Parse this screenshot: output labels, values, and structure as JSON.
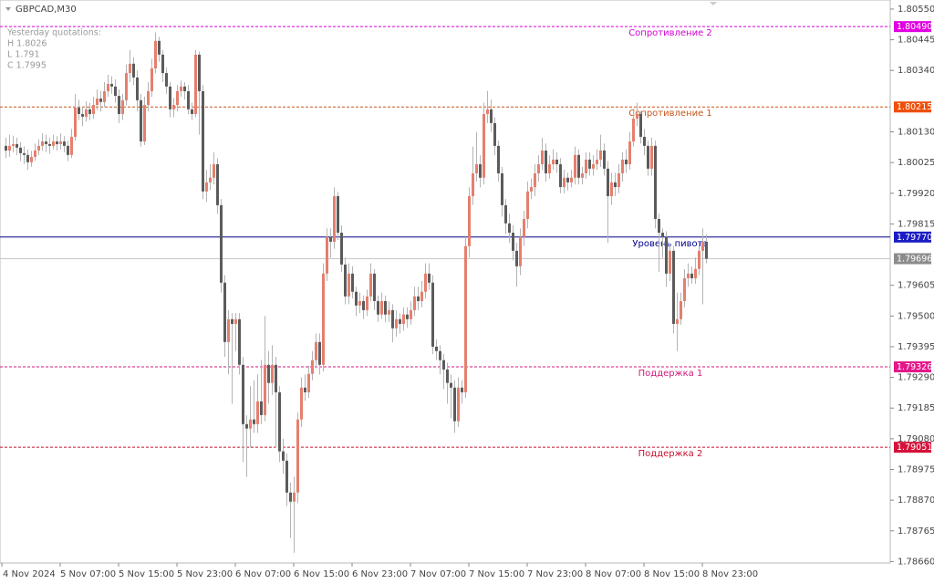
{
  "chart_data": {
    "type": "candlestick",
    "symbol": "GBPCAD,M30",
    "info": [
      "Yesterday quotations:",
      "H 1.8026",
      "L 1.791",
      "C 1.7995"
    ],
    "colors": {
      "up": "#e57f6e",
      "down": "#5b5b5b",
      "wick": "#b4b4b4"
    },
    "xlim": [
      -1.5,
      242.5
    ],
    "xticks": [
      {
        "value": -1,
        "label": "4 Nov 2024"
      },
      {
        "value": 15,
        "label": "5 Nov 07:00"
      },
      {
        "value": 31,
        "label": "5 Nov 15:00"
      },
      {
        "value": 47,
        "label": "5 Nov 23:00"
      },
      {
        "value": 63,
        "label": "6 Nov 07:00"
      },
      {
        "value": 79,
        "label": "6 Nov 15:00"
      },
      {
        "value": 95,
        "label": "6 Nov 23:00"
      },
      {
        "value": 111,
        "label": "7 Nov 07:00"
      },
      {
        "value": 127,
        "label": "7 Nov 15:00"
      },
      {
        "value": 143,
        "label": "7 Nov 23:00"
      },
      {
        "value": 159,
        "label": "8 Nov 07:00"
      },
      {
        "value": 175,
        "label": "8 Nov 15:00"
      },
      {
        "value": 191,
        "label": "8 Nov 23:00"
      }
    ],
    "ylim": [
      1.78655,
      1.80581
    ],
    "yticks": [
      {
        "value": 1.8055,
        "label": "1.80550"
      },
      1.80445,
      {
        "value": 1.8034,
        "label": "1.80340"
      },
      {
        "value": 1.8013,
        "label": "1.80130"
      },
      1.80025,
      {
        "value": 1.7992,
        "label": "1.79920"
      },
      1.79815,
      1.79605,
      {
        "value": 1.795,
        "label": "1.79500"
      },
      1.79395,
      {
        "value": 1.7929,
        "label": "1.79290"
      },
      1.79185,
      {
        "value": 1.7908,
        "label": "1.79080"
      },
      1.78975,
      {
        "value": 1.7887,
        "label": "1.78870"
      },
      1.78765,
      {
        "value": 1.7866,
        "label": "1.78660"
      }
    ],
    "levels": [
      {
        "name": "Сопротивление 2",
        "value": 1.8049,
        "label": "1.80490",
        "color": "#d300d3",
        "tag": "#e100e1",
        "style": "dashed"
      },
      {
        "name": "Сопротивление 1",
        "value": 1.80215,
        "label": "1.80215",
        "color": "#c8561a",
        "tag": "#ef4f0a",
        "style": "dashed"
      },
      {
        "name": "Уровень пивота",
        "value": 1.7977,
        "label": "1.79770",
        "color": "#00008b",
        "tag": "#1c1cc4",
        "style": "solid"
      },
      {
        "name": "Поддержка 1",
        "value": 1.79326,
        "label": "1.79326",
        "color": "#d11a7c",
        "tag": "#e4178a",
        "style": "dashed"
      },
      {
        "name": "Поддержка 2",
        "value": 1.79051,
        "label": "1.79051",
        "color": "#c8102e",
        "tag": "#d4123a",
        "style": "dashed"
      }
    ],
    "current": {
      "value": 1.79696,
      "label": "1.79696",
      "color": "#c8c8c8",
      "tag": "#8c8c8c"
    },
    "candles": [
      [
        1.80082,
        1.8011,
        1.8004,
        1.80066
      ],
      [
        1.80066,
        1.8012,
        1.80045,
        1.80082
      ],
      [
        1.80082,
        1.80115,
        1.8006,
        1.80088
      ],
      [
        1.80088,
        1.8011,
        1.8005,
        1.80076
      ],
      [
        1.80076,
        1.80095,
        1.8003,
        1.80057
      ],
      [
        1.80057,
        1.8008,
        1.8002,
        1.80051
      ],
      [
        1.80051,
        1.8007,
        1.8,
        1.80026
      ],
      [
        1.80026,
        1.80065,
        1.8001,
        1.80044
      ],
      [
        1.80044,
        1.8009,
        1.8003,
        1.80066
      ],
      [
        1.80066,
        1.80105,
        1.8005,
        1.80082
      ],
      [
        1.80082,
        1.80125,
        1.80065,
        1.80097
      ],
      [
        1.80097,
        1.8012,
        1.8006,
        1.80088
      ],
      [
        1.80088,
        1.8011,
        1.80055,
        1.80082
      ],
      [
        1.80082,
        1.8012,
        1.8007,
        1.80097
      ],
      [
        1.80097,
        1.80115,
        1.80065,
        1.80088
      ],
      [
        1.80088,
        1.80125,
        1.8007,
        1.80097
      ],
      [
        1.80097,
        1.80115,
        1.8006,
        1.80082
      ],
      [
        1.80082,
        1.801,
        1.8003,
        1.80051
      ],
      [
        1.80051,
        1.8014,
        1.8004,
        1.80113
      ],
      [
        1.80113,
        1.8026,
        1.801,
        1.80213
      ],
      [
        1.80213,
        1.8024,
        1.8017,
        1.80191
      ],
      [
        1.80191,
        1.80215,
        1.8015,
        1.80182
      ],
      [
        1.80182,
        1.80235,
        1.80165,
        1.80207
      ],
      [
        1.80207,
        1.8023,
        1.8017,
        1.80191
      ],
      [
        1.80191,
        1.8025,
        1.80175,
        1.80222
      ],
      [
        1.80222,
        1.80275,
        1.80205,
        1.80244
      ],
      [
        1.80244,
        1.8027,
        1.802,
        1.80232
      ],
      [
        1.80232,
        1.803,
        1.80215,
        1.80269
      ],
      [
        1.80269,
        1.80325,
        1.8025,
        1.80294
      ],
      [
        1.80294,
        1.8032,
        1.8026,
        1.80285
      ],
      [
        1.80285,
        1.8031,
        1.8023,
        1.80253
      ],
      [
        1.80253,
        1.80275,
        1.8016,
        1.80191
      ],
      [
        1.80191,
        1.8026,
        1.8017,
        1.80238
      ],
      [
        1.80238,
        1.8036,
        1.8022,
        1.80331
      ],
      [
        1.80331,
        1.8041,
        1.803,
        1.80363
      ],
      [
        1.80363,
        1.80385,
        1.8029,
        1.80316
      ],
      [
        1.80316,
        1.8034,
        1.802,
        1.80238
      ],
      [
        1.80238,
        1.8026,
        1.8008,
        1.80097
      ],
      [
        1.80097,
        1.8025,
        1.80085,
        1.80222
      ],
      [
        1.80222,
        1.803,
        1.802,
        1.80269
      ],
      [
        1.80269,
        1.8038,
        1.8025,
        1.80347
      ],
      [
        1.80347,
        1.8047,
        1.8033,
        1.80441
      ],
      [
        1.80441,
        1.80455,
        1.8037,
        1.80394
      ],
      [
        1.80394,
        1.8041,
        1.803,
        1.80331
      ],
      [
        1.80331,
        1.8035,
        1.8026,
        1.80285
      ],
      [
        1.80285,
        1.803,
        1.8018,
        1.80207
      ],
      [
        1.80207,
        1.80245,
        1.8018,
        1.80222
      ],
      [
        1.80222,
        1.8029,
        1.802,
        1.80269
      ],
      [
        1.80269,
        1.80305,
        1.8025,
        1.80285
      ],
      [
        1.80285,
        1.803,
        1.8024,
        1.80269
      ],
      [
        1.80269,
        1.8029,
        1.8019,
        1.80207
      ],
      [
        1.80207,
        1.8023,
        1.8017,
        1.80191
      ],
      [
        1.80191,
        1.8041,
        1.8018,
        1.80394
      ],
      [
        1.80394,
        1.80405,
        1.8012,
        1.80269
      ],
      [
        1.80269,
        1.8029,
        1.799,
        1.79926
      ],
      [
        1.79926,
        1.8,
        1.7989,
        1.79957
      ],
      [
        1.79957,
        1.8002,
        1.7993,
        1.79973
      ],
      [
        1.79973,
        1.8006,
        1.7995,
        1.80019
      ],
      [
        1.80019,
        1.8004,
        1.7985,
        1.79879
      ],
      [
        1.79879,
        1.799,
        1.7958,
        1.79614
      ],
      [
        1.79614,
        1.7964,
        1.7936,
        1.79411
      ],
      [
        1.79411,
        1.7952,
        1.793,
        1.79489
      ],
      [
        1.79489,
        1.7951,
        1.792,
        1.79473
      ],
      [
        1.79473,
        1.7951,
        1.7938,
        1.79489
      ],
      [
        1.79489,
        1.7951,
        1.793,
        1.79333
      ],
      [
        1.79333,
        1.7936,
        1.79,
        1.7913
      ],
      [
        1.7913,
        1.7916,
        1.7895,
        1.79115
      ],
      [
        1.79115,
        1.7926,
        1.7905,
        1.79146
      ],
      [
        1.79146,
        1.7928,
        1.791,
        1.7913
      ],
      [
        1.7913,
        1.793,
        1.791,
        1.79208
      ],
      [
        1.79208,
        1.7935,
        1.7913,
        1.79161
      ],
      [
        1.79161,
        1.795,
        1.7914,
        1.79333
      ],
      [
        1.79333,
        1.7938,
        1.792,
        1.79271
      ],
      [
        1.79271,
        1.794,
        1.7923,
        1.79333
      ],
      [
        1.79333,
        1.7936,
        1.7905,
        1.79239
      ],
      [
        1.79239,
        1.7926,
        1.79,
        1.79037
      ],
      [
        1.79037,
        1.7908,
        1.7896,
        1.79005
      ],
      [
        1.79005,
        1.7903,
        1.7885,
        1.78896
      ],
      [
        1.78896,
        1.7893,
        1.7874,
        1.78865
      ],
      [
        1.78865,
        1.7895,
        1.7869,
        1.78896
      ],
      [
        1.78896,
        1.7917,
        1.7886,
        1.79146
      ],
      [
        1.79146,
        1.7929,
        1.7912,
        1.79255
      ],
      [
        1.79255,
        1.793,
        1.7921,
        1.79239
      ],
      [
        1.79239,
        1.7933,
        1.7922,
        1.79302
      ],
      [
        1.79302,
        1.7938,
        1.7928,
        1.79349
      ],
      [
        1.79349,
        1.7944,
        1.7933,
        1.79411
      ],
      [
        1.79411,
        1.7944,
        1.793,
        1.79333
      ],
      [
        1.79333,
        1.7968,
        1.7931,
        1.79645
      ],
      [
        1.79645,
        1.798,
        1.7962,
        1.7977
      ],
      [
        1.7977,
        1.798,
        1.797,
        1.79754
      ],
      [
        1.79754,
        1.7994,
        1.7973,
        1.7991
      ],
      [
        1.7991,
        1.79925,
        1.7976,
        1.79785
      ],
      [
        1.79785,
        1.7981,
        1.7965,
        1.79676
      ],
      [
        1.79676,
        1.797,
        1.7954,
        1.79567
      ],
      [
        1.79567,
        1.7968,
        1.7954,
        1.79645
      ],
      [
        1.79645,
        1.7967,
        1.7956,
        1.79583
      ],
      [
        1.79583,
        1.796,
        1.795,
        1.79536
      ],
      [
        1.79536,
        1.7958,
        1.7951,
        1.79551
      ],
      [
        1.79551,
        1.7957,
        1.7949,
        1.7952
      ],
      [
        1.7952,
        1.7959,
        1.795,
        1.79567
      ],
      [
        1.79567,
        1.7968,
        1.7955,
        1.79645
      ],
      [
        1.79645,
        1.7966,
        1.7952,
        1.79551
      ],
      [
        1.79551,
        1.7957,
        1.7948,
        1.79505
      ],
      [
        1.79505,
        1.7958,
        1.7949,
        1.79551
      ],
      [
        1.79551,
        1.7957,
        1.7948,
        1.79505
      ],
      [
        1.79505,
        1.7955,
        1.7948,
        1.7952
      ],
      [
        1.7952,
        1.7954,
        1.7941,
        1.79458
      ],
      [
        1.79458,
        1.7952,
        1.7943,
        1.79489
      ],
      [
        1.79489,
        1.7951,
        1.7944,
        1.79473
      ],
      [
        1.79473,
        1.7953,
        1.7945,
        1.79505
      ],
      [
        1.79505,
        1.7953,
        1.7946,
        1.79489
      ],
      [
        1.79489,
        1.7955,
        1.7947,
        1.7952
      ],
      [
        1.7952,
        1.796,
        1.795,
        1.79567
      ],
      [
        1.79567,
        1.796,
        1.7952,
        1.79551
      ],
      [
        1.79551,
        1.7962,
        1.7953,
        1.79583
      ],
      [
        1.79583,
        1.7968,
        1.7956,
        1.79645
      ],
      [
        1.79645,
        1.7968,
        1.7959,
        1.79614
      ],
      [
        1.79614,
        1.7964,
        1.7937,
        1.79395
      ],
      [
        1.79395,
        1.7942,
        1.7935,
        1.7938
      ],
      [
        1.7938,
        1.794,
        1.793,
        1.79349
      ],
      [
        1.79349,
        1.7937,
        1.7925,
        1.79317
      ],
      [
        1.79317,
        1.7934,
        1.792,
        1.79271
      ],
      [
        1.79271,
        1.793,
        1.7915,
        1.79255
      ],
      [
        1.79255,
        1.7928,
        1.791,
        1.7914
      ],
      [
        1.7914,
        1.7929,
        1.7912,
        1.79255
      ],
      [
        1.79255,
        1.7928,
        1.792,
        1.79239
      ],
      [
        1.79239,
        1.7977,
        1.7922,
        1.79739
      ],
      [
        1.79739,
        1.7994,
        1.797,
        1.7991
      ],
      [
        1.7991,
        1.8008,
        1.7988,
        1.79988
      ],
      [
        1.79988,
        1.8013,
        1.7996,
        1.80019
      ],
      [
        1.80019,
        1.8005,
        1.7994,
        1.79973
      ],
      [
        1.79973,
        1.8023,
        1.7995,
        1.80191
      ],
      [
        1.80191,
        1.8027,
        1.8016,
        1.80207
      ],
      [
        1.80207,
        1.8024,
        1.8013,
        1.8016
      ],
      [
        1.8016,
        1.8018,
        1.8005,
        1.80082
      ],
      [
        1.80082,
        1.801,
        1.7996,
        1.79988
      ],
      [
        1.79988,
        1.8001,
        1.7984,
        1.79879
      ],
      [
        1.79879,
        1.799,
        1.7978,
        1.79817
      ],
      [
        1.79817,
        1.7985,
        1.7975,
        1.79785
      ],
      [
        1.79785,
        1.7981,
        1.7969,
        1.79723
      ],
      [
        1.79723,
        1.7975,
        1.796,
        1.7967
      ],
      [
        1.7967,
        1.798,
        1.7964,
        1.7977
      ],
      [
        1.7977,
        1.7986,
        1.7974,
        1.79832
      ],
      [
        1.79832,
        1.7996,
        1.798,
        1.79926
      ],
      [
        1.79926,
        1.7997,
        1.799,
        1.79941
      ],
      [
        1.79941,
        1.8002,
        1.7991,
        1.79988
      ],
      [
        1.79988,
        1.8005,
        1.7996,
        1.80019
      ],
      [
        1.80019,
        1.8011,
        1.8,
        1.80066
      ],
      [
        1.80066,
        1.8009,
        1.7996,
        1.79988
      ],
      [
        1.79988,
        1.8005,
        1.7997,
        1.80019
      ],
      [
        1.80019,
        1.8007,
        1.8,
        1.80035
      ],
      [
        1.80035,
        1.8006,
        1.7999,
        1.80019
      ],
      [
        1.80019,
        1.8004,
        1.7992,
        1.79941
      ],
      [
        1.79941,
        1.8,
        1.7992,
        1.79973
      ],
      [
        1.79973,
        1.7999,
        1.7993,
        1.79957
      ],
      [
        1.79957,
        1.8,
        1.7994,
        1.79973
      ],
      [
        1.79973,
        1.8008,
        1.7995,
        1.80051
      ],
      [
        1.80051,
        1.8007,
        1.7995,
        1.79973
      ],
      [
        1.79973,
        1.8001,
        1.7995,
        1.79988
      ],
      [
        1.79988,
        1.8006,
        1.7997,
        1.80035
      ],
      [
        1.80035,
        1.8006,
        1.7998,
        1.80004
      ],
      [
        1.80004,
        1.8005,
        1.7998,
        1.80019
      ],
      [
        1.80019,
        1.8007,
        1.8,
        1.80035
      ],
      [
        1.80035,
        1.8012,
        1.8001,
        1.80066
      ],
      [
        1.80066,
        1.8009,
        1.7998,
        1.80004
      ],
      [
        1.80004,
        1.8003,
        1.7975,
        1.7991
      ],
      [
        1.7991,
        1.7999,
        1.7988,
        1.79957
      ],
      [
        1.79957,
        1.7999,
        1.7991,
        1.79941
      ],
      [
        1.79941,
        1.8002,
        1.7992,
        1.79988
      ],
      [
        1.79988,
        1.8006,
        1.7996,
        1.80035
      ],
      [
        1.80035,
        1.8007,
        1.7999,
        1.80019
      ],
      [
        1.80019,
        1.8013,
        1.8,
        1.80097
      ],
      [
        1.80097,
        1.8021,
        1.8008,
        1.80175
      ],
      [
        1.80175,
        1.8023,
        1.8015,
        1.80191
      ],
      [
        1.80191,
        1.802,
        1.8009,
        1.80113
      ],
      [
        1.80113,
        1.8014,
        1.8005,
        1.80082
      ],
      [
        1.80082,
        1.801,
        1.7998,
        1.80004
      ],
      [
        1.80004,
        1.8011,
        1.7998,
        1.80082
      ],
      [
        1.80082,
        1.801,
        1.798,
        1.79832
      ],
      [
        1.79832,
        1.7985,
        1.7965,
        1.79785
      ],
      [
        1.79785,
        1.798,
        1.797,
        1.7977
      ],
      [
        1.7977,
        1.7979,
        1.796,
        1.79645
      ],
      [
        1.79645,
        1.7975,
        1.7962,
        1.79723
      ],
      [
        1.79723,
        1.7974,
        1.7944,
        1.79473
      ],
      [
        1.79473,
        1.7958,
        1.7938,
        1.79489
      ],
      [
        1.79489,
        1.7958,
        1.7947,
        1.79551
      ],
      [
        1.79551,
        1.7966,
        1.7953,
        1.79629
      ],
      [
        1.79629,
        1.7968,
        1.796,
        1.79645
      ],
      [
        1.79645,
        1.7967,
        1.7961,
        1.79629
      ],
      [
        1.79629,
        1.797,
        1.7961,
        1.79661
      ],
      [
        1.79661,
        1.7975,
        1.7964,
        1.79723
      ],
      [
        1.79723,
        1.798,
        1.7954,
        1.79754
      ],
      [
        1.79754,
        1.7978,
        1.7968,
        1.79696
      ]
    ]
  }
}
